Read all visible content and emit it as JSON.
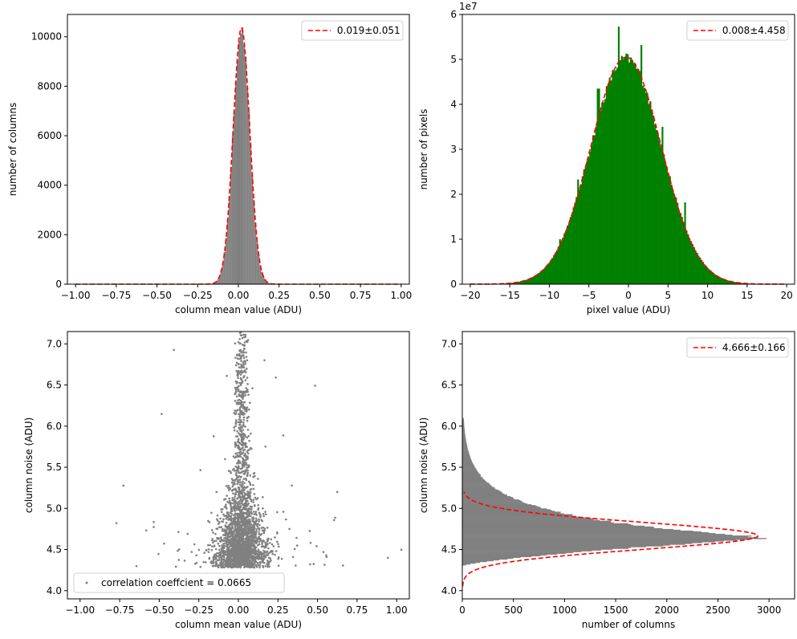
{
  "chart_data": [
    {
      "type": "bar",
      "panel": "top-left",
      "xlabel": "column mean value (ADU)",
      "ylabel": "number of columns",
      "xlim": [
        -1.05,
        1.05
      ],
      "ylim": [
        0,
        10900
      ],
      "xticks": [
        -1.0,
        -0.75,
        -0.5,
        -0.25,
        0.0,
        0.25,
        0.5,
        0.75,
        1.0
      ],
      "xtick_labels": [
        "−1.00",
        "−0.75",
        "−0.50",
        "−0.25",
        "0.00",
        "0.25",
        "0.50",
        "0.75",
        "1.00"
      ],
      "yticks": [
        0,
        2000,
        4000,
        6000,
        8000,
        10000
      ],
      "ytick_labels": [
        "0",
        "2000",
        "4000",
        "6000",
        "8000",
        "10000"
      ],
      "hist": {
        "color": "#808080",
        "mu": 0.019,
        "sigma": 0.051,
        "peak": 10300,
        "range": [
          -1.0,
          1.0
        ],
        "bins": 200
      },
      "series": [
        {
          "name": "0.019±0.051",
          "type": "gaussian-fit",
          "mu": 0.019,
          "sigma": 0.051,
          "peak": 10350,
          "color": "#ff0000",
          "style": "dashed"
        }
      ],
      "legend": "top-right",
      "grid": false
    },
    {
      "type": "bar",
      "panel": "top-right",
      "xlabel": "pixel value (ADU)",
      "ylabel": "number of pixels",
      "offset_label": "1e7",
      "xlim": [
        -21.0,
        21.0
      ],
      "ylim": [
        0,
        60000000
      ],
      "xticks": [
        -20,
        -15,
        -10,
        -5,
        0,
        5,
        10,
        15,
        20
      ],
      "xtick_labels": [
        "−20",
        "−15",
        "−10",
        "−5",
        "0",
        "5",
        "10",
        "15",
        "20"
      ],
      "yticks": [
        0,
        10000000,
        20000000,
        30000000,
        40000000,
        50000000,
        60000000
      ],
      "ytick_labels": [
        "0",
        "1",
        "2",
        "3",
        "4",
        "5",
        "6"
      ],
      "hist": {
        "color": "#008000",
        "mu": -0.3,
        "sigma": 4.5,
        "peak": 50200000,
        "range": [
          -20,
          20
        ],
        "bins": 210,
        "spikes": [
          [
            -1.2,
            57300000
          ],
          [
            1.7,
            53200000
          ],
          [
            -3.8,
            43500000
          ],
          [
            4.3,
            35000000
          ],
          [
            -6.4,
            23300000
          ],
          [
            7.1,
            18200000
          ],
          [
            -8.6,
            10000000
          ]
        ]
      },
      "series": [
        {
          "name": "0.008±4.458",
          "type": "gaussian-fit",
          "mu": 0.008,
          "sigma": 4.458,
          "peak": 50500000,
          "color": "#ff0000",
          "style": "dashed"
        }
      ],
      "legend": "top-right",
      "grid": false
    },
    {
      "type": "scatter",
      "panel": "bottom-left",
      "xlabel": "column mean value (ADU)",
      "ylabel": "column noise (ADU)",
      "xlim": [
        -1.08,
        1.08
      ],
      "ylim": [
        3.9,
        7.15
      ],
      "xticks": [
        -1.0,
        -0.75,
        -0.5,
        -0.25,
        0.0,
        0.25,
        0.5,
        0.75,
        1.0
      ],
      "xtick_labels": [
        "−1.00",
        "−0.75",
        "−0.50",
        "−0.25",
        "0.00",
        "0.25",
        "0.50",
        "0.75",
        "1.00"
      ],
      "yticks": [
        4.0,
        4.5,
        5.0,
        5.5,
        6.0,
        6.5,
        7.0
      ],
      "ytick_labels": [
        "4.0",
        "4.5",
        "5.0",
        "5.5",
        "6.0",
        "6.5",
        "7.0"
      ],
      "points": {
        "color": "#808080",
        "x_center": 0.02,
        "x_sigma": 0.055,
        "noise_mode": 4.666,
        "noise_floor": 4.28,
        "approx_count": 2600
      },
      "series": [
        {
          "name": "correlation coeffcient = 0.0665",
          "color": "#808080"
        }
      ],
      "legend": "bottom-left",
      "grid": false
    },
    {
      "type": "bar",
      "orientation": "horizontal",
      "panel": "bottom-right",
      "xlabel": "number of columns",
      "ylabel": "column noise (ADU)",
      "xlim": [
        0,
        3250
      ],
      "ylim": [
        3.9,
        7.15
      ],
      "xticks": [
        0,
        500,
        1000,
        1500,
        2000,
        2500,
        3000
      ],
      "xtick_labels": [
        "0",
        "500",
        "1000",
        "1500",
        "2000",
        "2500",
        "3000"
      ],
      "yticks": [
        4.0,
        4.5,
        5.0,
        5.5,
        6.0,
        6.5,
        7.0
      ],
      "ytick_labels": [
        "4.0",
        "4.5",
        "5.0",
        "5.5",
        "6.0",
        "6.5",
        "7.0"
      ],
      "hist": {
        "color": "#808080",
        "mode": 4.64,
        "lower_edge": 4.3,
        "peak": 3020,
        "upper_tail": 0.27,
        "range": [
          4.3,
          6.1
        ]
      },
      "series": [
        {
          "name": "4.666±0.166",
          "type": "gaussian-fit",
          "mu": 4.666,
          "sigma": 0.166,
          "peak": 2890,
          "color": "#ff0000",
          "style": "dashed"
        }
      ],
      "legend": "top-right",
      "grid": false
    }
  ]
}
